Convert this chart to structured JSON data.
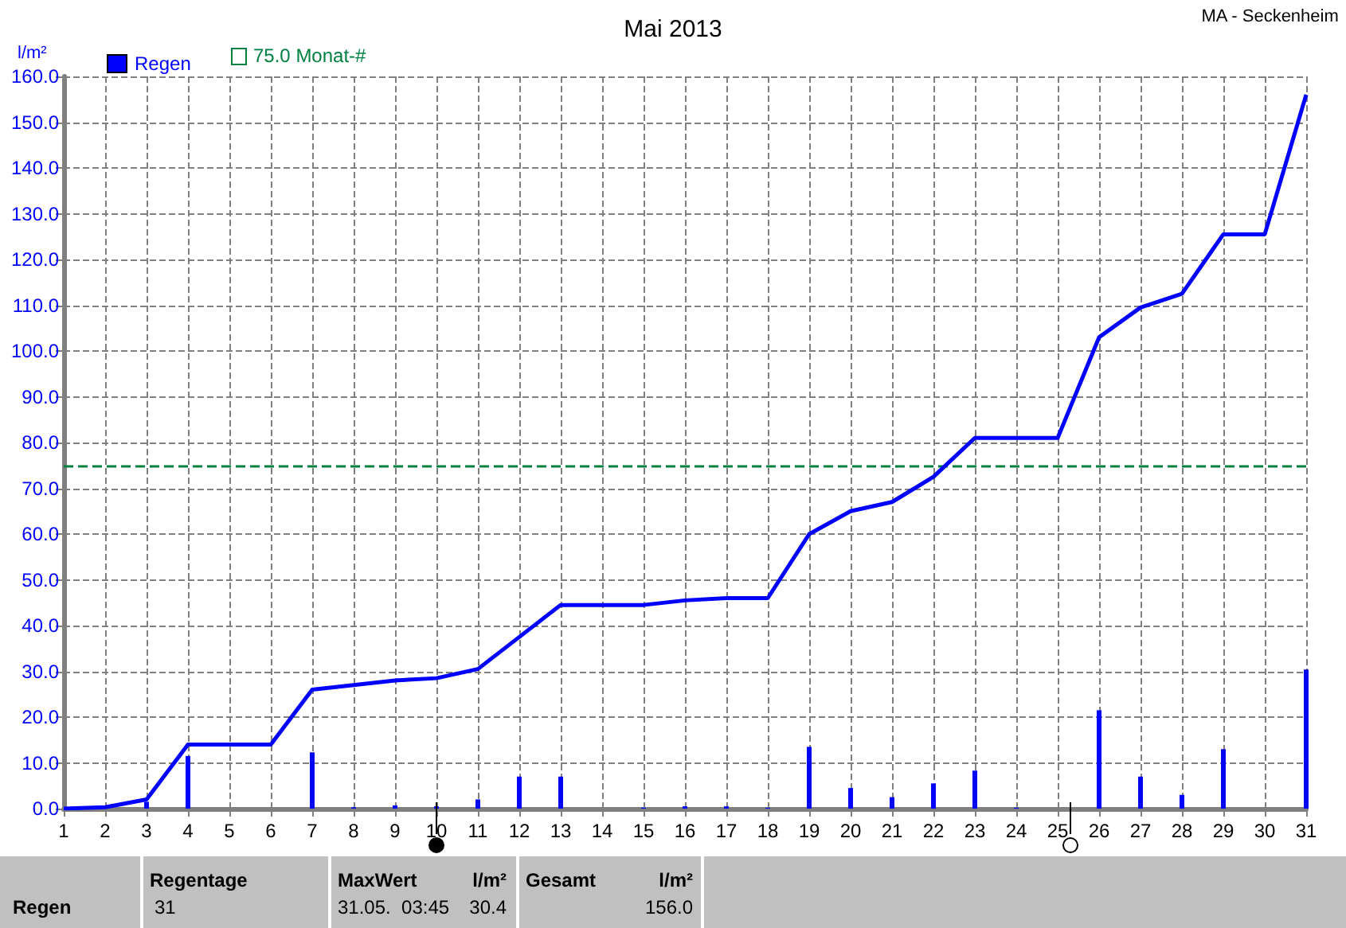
{
  "chart_data": {
    "type": "bar",
    "title": "Mai 2013",
    "subtitle": "MA - Seckenheim",
    "ylabel": "l/m²",
    "x": [
      1,
      2,
      3,
      4,
      5,
      6,
      7,
      8,
      9,
      10,
      11,
      12,
      13,
      14,
      15,
      16,
      17,
      18,
      19,
      20,
      21,
      22,
      23,
      24,
      25,
      26,
      27,
      28,
      29,
      30,
      31
    ],
    "series": [
      {
        "name": "Regen",
        "color": "#0000ff",
        "values": [
          0,
          0.3,
          1.5,
          11.5,
          0,
          0,
          12.3,
          0.3,
          0.7,
          0.5,
          2,
          7,
          7,
          0,
          0.2,
          0.5,
          0.5,
          0.2,
          13.5,
          4.5,
          2.5,
          5.5,
          8.3,
          0.2,
          0,
          21.5,
          7,
          3,
          13,
          0,
          30.4
        ]
      },
      {
        "type": "line",
        "color": "#0000ff",
        "values": [
          0,
          0.3,
          2,
          14,
          14,
          14,
          26,
          27,
          28,
          28.5,
          30.5,
          37.5,
          44.5,
          44.5,
          44.5,
          45.5,
          46,
          46,
          60,
          65,
          67,
          72.5,
          81,
          81,
          81,
          103,
          109.5,
          112.5,
          125.5,
          125.5,
          156
        ]
      }
    ],
    "xlim": [
      1,
      31
    ],
    "xticks": [
      1,
      2,
      3,
      4,
      5,
      6,
      7,
      8,
      9,
      10,
      11,
      12,
      13,
      14,
      15,
      16,
      17,
      18,
      19,
      20,
      21,
      22,
      23,
      24,
      25,
      26,
      27,
      28,
      29,
      30,
      31
    ],
    "ylim": [
      0,
      160
    ],
    "yticks": [
      {
        "value": 0,
        "label": "0.0"
      },
      {
        "value": 10,
        "label": "10.0"
      },
      {
        "value": 20,
        "label": "20.0"
      },
      {
        "value": 30,
        "label": "30.0"
      },
      {
        "value": 40,
        "label": "40.0"
      },
      {
        "value": 50,
        "label": "50.0"
      },
      {
        "value": 60,
        "label": "60.0"
      },
      {
        "value": 70,
        "label": "70.0"
      },
      {
        "value": 80,
        "label": "80.0"
      },
      {
        "value": 90,
        "label": "90.0"
      },
      {
        "value": 100,
        "label": "100.0"
      },
      {
        "value": 110,
        "label": "110.0"
      },
      {
        "value": 120,
        "label": "120.0"
      },
      {
        "value": 130,
        "label": "130.0"
      },
      {
        "value": 140,
        "label": "140.0"
      },
      {
        "value": 150,
        "label": "150.0"
      },
      {
        "value": 160,
        "label": "160.0"
      }
    ],
    "ref_lines": [
      {
        "axis": "y",
        "value": 75,
        "label": "75.0 Monat-#",
        "color": "#008040",
        "line_style": "dashed"
      }
    ],
    "grid": true,
    "legend": "top left",
    "annotations": [
      "Regen",
      "Regentage",
      "31",
      "MaxWert",
      "l/m²",
      "31.05.  03:45",
      "30.4",
      "Gesamt",
      "l/m²",
      "156.0"
    ]
  }
}
